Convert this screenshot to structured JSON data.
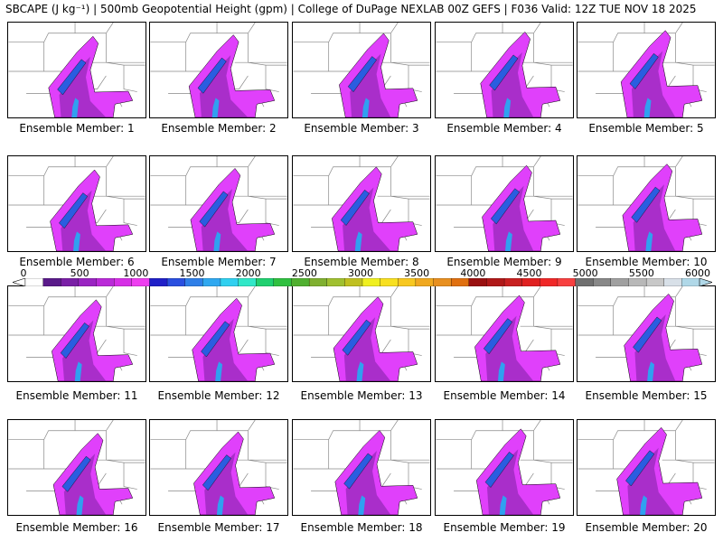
{
  "title": "SBCAPE (J kg⁻¹) | 500mb Geopotential Height (gpm) | College of DuPage NEXLAB 00Z GEFS | F036 Valid: 12Z TUE NOV 18 2025",
  "panels": [
    {
      "label": "Ensemble Member: 1"
    },
    {
      "label": "Ensemble Member: 2"
    },
    {
      "label": "Ensemble Member: 3"
    },
    {
      "label": "Ensemble Member: 4"
    },
    {
      "label": "Ensemble Member: 5"
    },
    {
      "label": "Ensemble Member: 6"
    },
    {
      "label": "Ensemble Member: 7"
    },
    {
      "label": "Ensemble Member: 8"
    },
    {
      "label": "Ensemble Member: 9"
    },
    {
      "label": "Ensemble Member: 10"
    },
    {
      "label": "Ensemble Member: 11"
    },
    {
      "label": "Ensemble Member: 12"
    },
    {
      "label": "Ensemble Member: 13"
    },
    {
      "label": "Ensemble Member: 14"
    },
    {
      "label": "Ensemble Member: 15"
    },
    {
      "label": "Ensemble Member: 16"
    },
    {
      "label": "Ensemble Member: 17"
    },
    {
      "label": "Ensemble Member: 18"
    },
    {
      "label": "Ensemble Member: 19"
    },
    {
      "label": "Ensemble Member: 20"
    }
  ],
  "colorbar": {
    "min": 0,
    "max": 6000,
    "ticks": [
      "0",
      "500",
      "1000",
      "1500",
      "2000",
      "2500",
      "3000",
      "3500",
      "4000",
      "4500",
      "5000",
      "5500",
      "6000"
    ],
    "segments": [
      "#ffffff",
      "#5a1a8a",
      "#7a1fa6",
      "#9a24c2",
      "#ba2ad8",
      "#d62fe6",
      "#ee3ef0",
      "#2020c8",
      "#2a4fe0",
      "#2f7fe8",
      "#30a8f0",
      "#30d0f0",
      "#30e8c8",
      "#20d070",
      "#30c040",
      "#50b030",
      "#80b030",
      "#a0c030",
      "#c0c020",
      "#f0f020",
      "#f8e020",
      "#f8c820",
      "#f0a820",
      "#e89020",
      "#e07010",
      "#9a1010",
      "#b01818",
      "#c82020",
      "#e02020",
      "#f02828",
      "#f84040",
      "#707070",
      "#888888",
      "#a0a0a0",
      "#b8b8b8",
      "#c8c8c8",
      "#d8e0e8",
      "#b0d8e8"
    ]
  },
  "colors": {
    "low": "#7b1fa2",
    "mid": "#e040fb",
    "high": "#2a5de0",
    "core": "#30a0f0"
  }
}
